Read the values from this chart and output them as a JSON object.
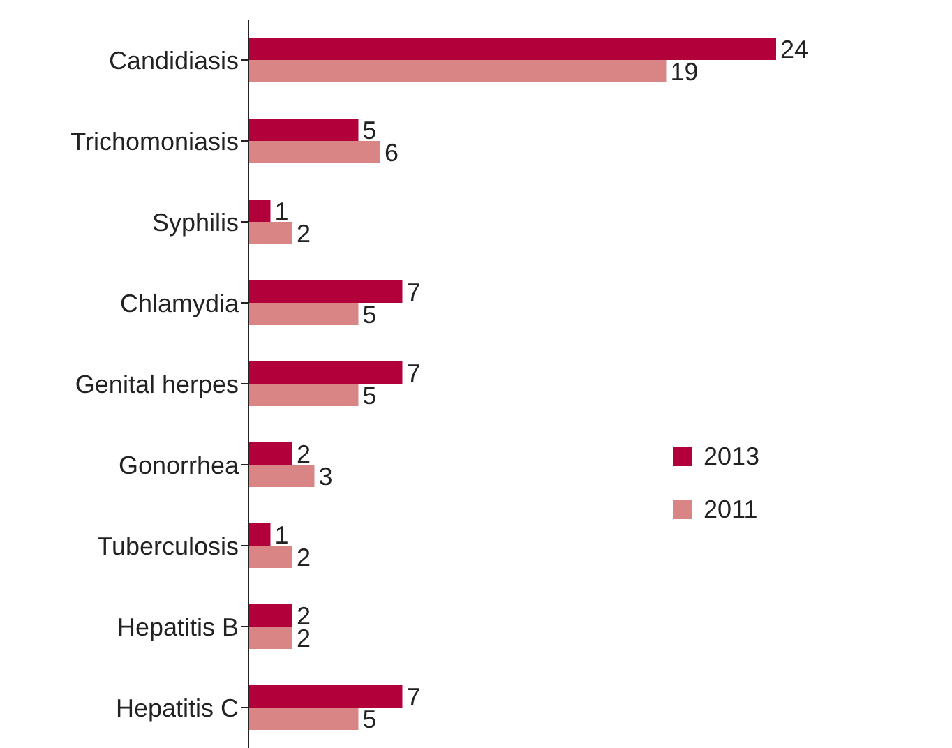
{
  "chart_data": {
    "type": "bar",
    "orientation": "horizontal",
    "data_labels": true,
    "legend": "right",
    "grid": false,
    "categories": [
      "Candidiasis",
      "Trichomoniasis",
      "Syphilis",
      "Chlamydia",
      "Genital herpes",
      "Gonorrhea",
      "Tuberculosis",
      "Hepatitis B",
      "Hepatitis C"
    ],
    "series": [
      {
        "name": "2013",
        "color": "#b2003a",
        "values": [
          24,
          5,
          1,
          7,
          7,
          2,
          1,
          2,
          7
        ]
      },
      {
        "name": "2011",
        "color": "#d98585",
        "values": [
          19,
          6,
          2,
          5,
          5,
          3,
          2,
          2,
          5
        ]
      }
    ]
  }
}
